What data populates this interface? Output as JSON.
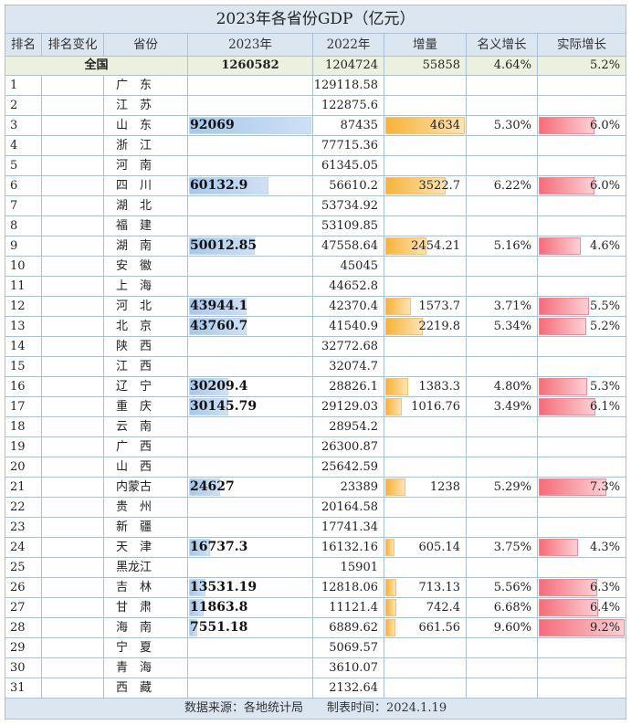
{
  "title": "2023年各省份GDP（亿元）",
  "headers": {
    "rank": "排名",
    "rank_change": "排名变化",
    "province": "省份",
    "y2023": "2023年",
    "y2022": "2022年",
    "increase": "增量",
    "nominal": "名义增长",
    "real": "实际增长"
  },
  "national": {
    "label": "全国",
    "y2023": "1260582",
    "y2022": "1204724",
    "increase": "55858",
    "nominal": "4.64%",
    "real": "5.2%"
  },
  "rows": [
    {
      "rank": "1",
      "province": "广　东",
      "y2023": "",
      "y2022": "129118.58",
      "increase": "",
      "nominal": "",
      "real": ""
    },
    {
      "rank": "2",
      "province": "江　苏",
      "y2023": "",
      "y2022": "122875.6",
      "increase": "",
      "nominal": "",
      "real": ""
    },
    {
      "rank": "3",
      "province": "山　东",
      "y2023": "92069",
      "y2022": "87435",
      "increase": "4634",
      "nominal": "5.30%",
      "real": "6.0%"
    },
    {
      "rank": "4",
      "province": "浙　江",
      "y2023": "",
      "y2022": "77715.36",
      "increase": "",
      "nominal": "",
      "real": ""
    },
    {
      "rank": "5",
      "province": "河　南",
      "y2023": "",
      "y2022": "61345.05",
      "increase": "",
      "nominal": "",
      "real": ""
    },
    {
      "rank": "6",
      "province": "四　川",
      "y2023": "60132.9",
      "y2022": "56610.2",
      "increase": "3522.7",
      "nominal": "6.22%",
      "real": "6.0%"
    },
    {
      "rank": "7",
      "province": "湖　北",
      "y2023": "",
      "y2022": "53734.92",
      "increase": "",
      "nominal": "",
      "real": ""
    },
    {
      "rank": "8",
      "province": "福　建",
      "y2023": "",
      "y2022": "53109.85",
      "increase": "",
      "nominal": "",
      "real": ""
    },
    {
      "rank": "9",
      "province": "湖　南",
      "y2023": "50012.85",
      "y2022": "47558.64",
      "increase": "2454.21",
      "nominal": "5.16%",
      "real": "4.6%"
    },
    {
      "rank": "10",
      "province": "安　徽",
      "y2023": "",
      "y2022": "45045",
      "increase": "",
      "nominal": "",
      "real": ""
    },
    {
      "rank": "11",
      "province": "上　海",
      "y2023": "",
      "y2022": "44652.8",
      "increase": "",
      "nominal": "",
      "real": ""
    },
    {
      "rank": "12",
      "province": "河　北",
      "y2023": "43944.1",
      "y2022": "42370.4",
      "increase": "1573.7",
      "nominal": "3.71%",
      "real": "5.5%"
    },
    {
      "rank": "13",
      "province": "北　京",
      "y2023": "43760.7",
      "y2022": "41540.9",
      "increase": "2219.8",
      "nominal": "5.34%",
      "real": "5.2%"
    },
    {
      "rank": "14",
      "province": "陕　西",
      "y2023": "",
      "y2022": "32772.68",
      "increase": "",
      "nominal": "",
      "real": ""
    },
    {
      "rank": "15",
      "province": "江　西",
      "y2023": "",
      "y2022": "32074.7",
      "increase": "",
      "nominal": "",
      "real": ""
    },
    {
      "rank": "16",
      "province": "辽　宁",
      "y2023": "30209.4",
      "y2022": "28826.1",
      "increase": "1383.3",
      "nominal": "4.80%",
      "real": "5.3%"
    },
    {
      "rank": "17",
      "province": "重　庆",
      "y2023": "30145.79",
      "y2022": "29129.03",
      "increase": "1016.76",
      "nominal": "3.49%",
      "real": "6.1%"
    },
    {
      "rank": "18",
      "province": "云　南",
      "y2023": "",
      "y2022": "28954.2",
      "increase": "",
      "nominal": "",
      "real": ""
    },
    {
      "rank": "19",
      "province": "广　西",
      "y2023": "",
      "y2022": "26300.87",
      "increase": "",
      "nominal": "",
      "real": ""
    },
    {
      "rank": "20",
      "province": "山　西",
      "y2023": "",
      "y2022": "25642.59",
      "increase": "",
      "nominal": "",
      "real": ""
    },
    {
      "rank": "21",
      "province": "内蒙古",
      "y2023": "24627",
      "y2022": "23389",
      "increase": "1238",
      "nominal": "5.29%",
      "real": "7.3%"
    },
    {
      "rank": "22",
      "province": "贵　州",
      "y2023": "",
      "y2022": "20164.58",
      "increase": "",
      "nominal": "",
      "real": ""
    },
    {
      "rank": "23",
      "province": "新　疆",
      "y2023": "",
      "y2022": "17741.34",
      "increase": "",
      "nominal": "",
      "real": ""
    },
    {
      "rank": "24",
      "province": "天　津",
      "y2023": "16737.3",
      "y2022": "16132.16",
      "increase": "605.14",
      "nominal": "3.75%",
      "real": "4.3%"
    },
    {
      "rank": "25",
      "province": "黑龙江",
      "y2023": "",
      "y2022": "15901",
      "increase": "",
      "nominal": "",
      "real": ""
    },
    {
      "rank": "26",
      "province": "吉　林",
      "y2023": "13531.19",
      "y2022": "12818.06",
      "increase": "713.13",
      "nominal": "5.56%",
      "real": "6.3%"
    },
    {
      "rank": "27",
      "province": "甘　肃",
      "y2023": "11863.8",
      "y2022": "11121.4",
      "increase": "742.4",
      "nominal": "6.68%",
      "real": "6.4%"
    },
    {
      "rank": "28",
      "province": "海　南",
      "y2023": "7551.18",
      "y2022": "6889.62",
      "increase": "661.56",
      "nominal": "9.60%",
      "real": "9.2%"
    },
    {
      "rank": "29",
      "province": "宁　夏",
      "y2023": "",
      "y2022": "5069.57",
      "increase": "",
      "nominal": "",
      "real": ""
    },
    {
      "rank": "30",
      "province": "青　海",
      "y2023": "",
      "y2022": "3610.07",
      "increase": "",
      "nominal": "",
      "real": ""
    },
    {
      "rank": "31",
      "province": "西　藏",
      "y2023": "",
      "y2022": "2132.64",
      "increase": "",
      "nominal": "",
      "real": ""
    }
  ],
  "footer": "数据来源：各地统计局　　制表时间：2024.1.19",
  "colors": {
    "header_bg": "#dce6f1",
    "national_bg": "#ebf1de",
    "grid": "#a9c0d6",
    "bar_blue": "#a6c8ec",
    "bar_orange": "#f7b338",
    "bar_red": "#f56c79"
  }
}
